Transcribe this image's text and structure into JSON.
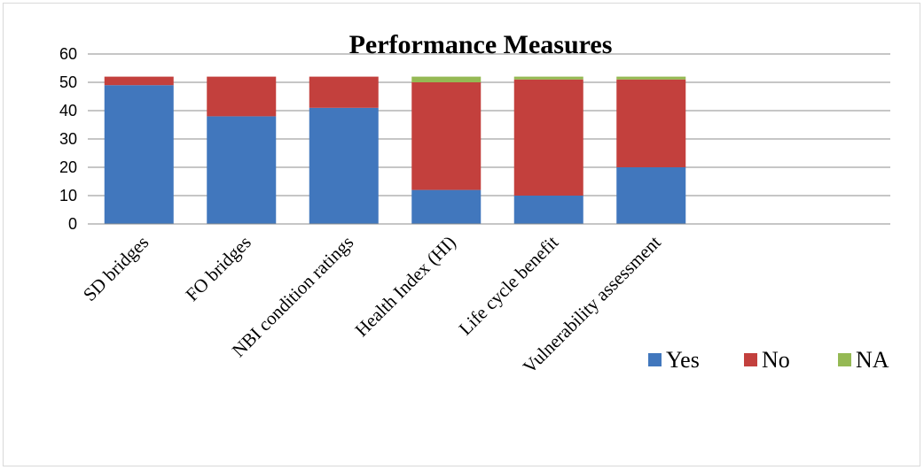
{
  "chart_data": {
    "type": "bar",
    "stacked": true,
    "title": "Performance Measures",
    "xlabel": "",
    "ylabel": "",
    "ylim": [
      0,
      60
    ],
    "yticks": [
      "0",
      "10",
      "20",
      "30",
      "40",
      "50",
      "60"
    ],
    "grid": true,
    "legend_position": "bottom-right",
    "categories": [
      "SD bridges",
      "FO bridges",
      "NBI condition ratings",
      "Health Index (HI)",
      "Life cycle benefit",
      "Vulnerability assessment"
    ],
    "series": [
      {
        "name": "Yes",
        "color": "#4177bd",
        "values": [
          49,
          38,
          41,
          12,
          10,
          20
        ]
      },
      {
        "name": "No",
        "color": "#c3403d",
        "values": [
          3,
          14,
          11,
          38,
          41,
          31
        ]
      },
      {
        "name": "NA",
        "color": "#95b954",
        "values": [
          0,
          0,
          0,
          2,
          1,
          1
        ]
      }
    ]
  }
}
